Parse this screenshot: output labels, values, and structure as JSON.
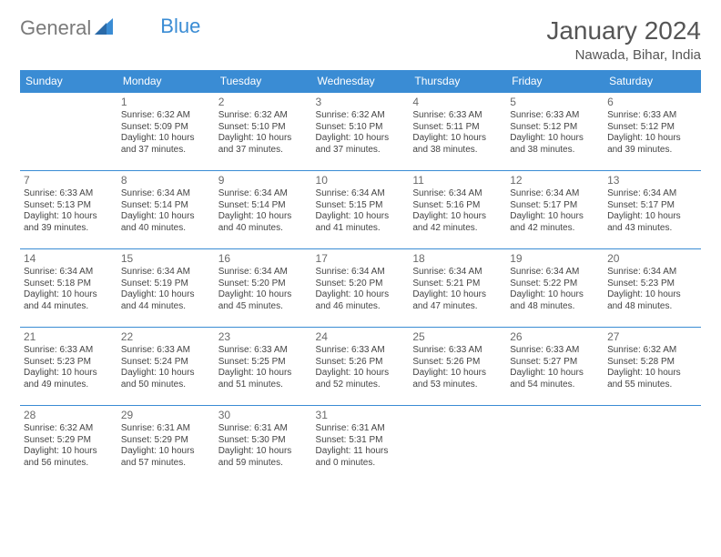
{
  "brand": {
    "text1": "General",
    "text2": "Blue"
  },
  "title": "January 2024",
  "location": "Nawada, Bihar, India",
  "colors": {
    "accent": "#3a8cd4",
    "text": "#444444",
    "muted": "#6a6a6a",
    "bg": "#ffffff"
  },
  "dow": [
    "Sunday",
    "Monday",
    "Tuesday",
    "Wednesday",
    "Thursday",
    "Friday",
    "Saturday"
  ],
  "weeks": [
    [
      null,
      {
        "n": "1",
        "sr": "6:32 AM",
        "ss": "5:09 PM",
        "dl": "10 hours and 37 minutes."
      },
      {
        "n": "2",
        "sr": "6:32 AM",
        "ss": "5:10 PM",
        "dl": "10 hours and 37 minutes."
      },
      {
        "n": "3",
        "sr": "6:32 AM",
        "ss": "5:10 PM",
        "dl": "10 hours and 37 minutes."
      },
      {
        "n": "4",
        "sr": "6:33 AM",
        "ss": "5:11 PM",
        "dl": "10 hours and 38 minutes."
      },
      {
        "n": "5",
        "sr": "6:33 AM",
        "ss": "5:12 PM",
        "dl": "10 hours and 38 minutes."
      },
      {
        "n": "6",
        "sr": "6:33 AM",
        "ss": "5:12 PM",
        "dl": "10 hours and 39 minutes."
      }
    ],
    [
      {
        "n": "7",
        "sr": "6:33 AM",
        "ss": "5:13 PM",
        "dl": "10 hours and 39 minutes."
      },
      {
        "n": "8",
        "sr": "6:34 AM",
        "ss": "5:14 PM",
        "dl": "10 hours and 40 minutes."
      },
      {
        "n": "9",
        "sr": "6:34 AM",
        "ss": "5:14 PM",
        "dl": "10 hours and 40 minutes."
      },
      {
        "n": "10",
        "sr": "6:34 AM",
        "ss": "5:15 PM",
        "dl": "10 hours and 41 minutes."
      },
      {
        "n": "11",
        "sr": "6:34 AM",
        "ss": "5:16 PM",
        "dl": "10 hours and 42 minutes."
      },
      {
        "n": "12",
        "sr": "6:34 AM",
        "ss": "5:17 PM",
        "dl": "10 hours and 42 minutes."
      },
      {
        "n": "13",
        "sr": "6:34 AM",
        "ss": "5:17 PM",
        "dl": "10 hours and 43 minutes."
      }
    ],
    [
      {
        "n": "14",
        "sr": "6:34 AM",
        "ss": "5:18 PM",
        "dl": "10 hours and 44 minutes."
      },
      {
        "n": "15",
        "sr": "6:34 AM",
        "ss": "5:19 PM",
        "dl": "10 hours and 44 minutes."
      },
      {
        "n": "16",
        "sr": "6:34 AM",
        "ss": "5:20 PM",
        "dl": "10 hours and 45 minutes."
      },
      {
        "n": "17",
        "sr": "6:34 AM",
        "ss": "5:20 PM",
        "dl": "10 hours and 46 minutes."
      },
      {
        "n": "18",
        "sr": "6:34 AM",
        "ss": "5:21 PM",
        "dl": "10 hours and 47 minutes."
      },
      {
        "n": "19",
        "sr": "6:34 AM",
        "ss": "5:22 PM",
        "dl": "10 hours and 48 minutes."
      },
      {
        "n": "20",
        "sr": "6:34 AM",
        "ss": "5:23 PM",
        "dl": "10 hours and 48 minutes."
      }
    ],
    [
      {
        "n": "21",
        "sr": "6:33 AM",
        "ss": "5:23 PM",
        "dl": "10 hours and 49 minutes."
      },
      {
        "n": "22",
        "sr": "6:33 AM",
        "ss": "5:24 PM",
        "dl": "10 hours and 50 minutes."
      },
      {
        "n": "23",
        "sr": "6:33 AM",
        "ss": "5:25 PM",
        "dl": "10 hours and 51 minutes."
      },
      {
        "n": "24",
        "sr": "6:33 AM",
        "ss": "5:26 PM",
        "dl": "10 hours and 52 minutes."
      },
      {
        "n": "25",
        "sr": "6:33 AM",
        "ss": "5:26 PM",
        "dl": "10 hours and 53 minutes."
      },
      {
        "n": "26",
        "sr": "6:33 AM",
        "ss": "5:27 PM",
        "dl": "10 hours and 54 minutes."
      },
      {
        "n": "27",
        "sr": "6:32 AM",
        "ss": "5:28 PM",
        "dl": "10 hours and 55 minutes."
      }
    ],
    [
      {
        "n": "28",
        "sr": "6:32 AM",
        "ss": "5:29 PM",
        "dl": "10 hours and 56 minutes."
      },
      {
        "n": "29",
        "sr": "6:31 AM",
        "ss": "5:29 PM",
        "dl": "10 hours and 57 minutes."
      },
      {
        "n": "30",
        "sr": "6:31 AM",
        "ss": "5:30 PM",
        "dl": "10 hours and 59 minutes."
      },
      {
        "n": "31",
        "sr": "6:31 AM",
        "ss": "5:31 PM",
        "dl": "11 hours and 0 minutes."
      },
      null,
      null,
      null
    ]
  ],
  "labels": {
    "sunrise": "Sunrise:",
    "sunset": "Sunset:",
    "daylight": "Daylight:"
  }
}
